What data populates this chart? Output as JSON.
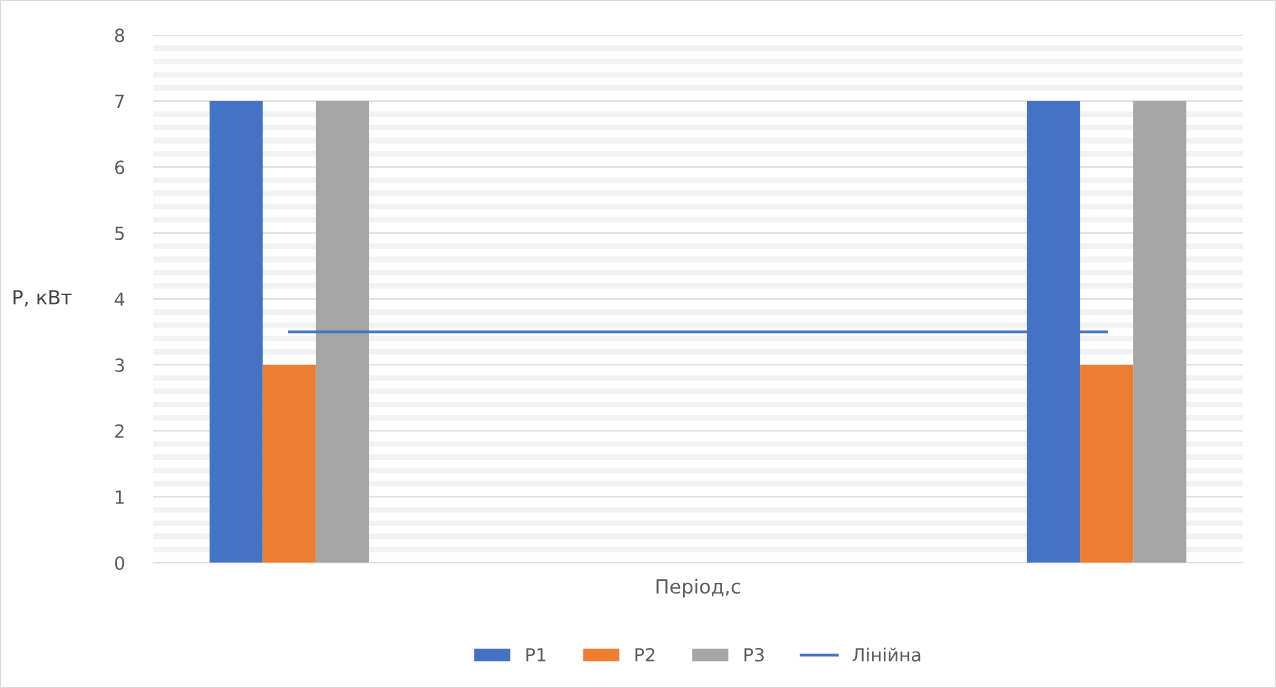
{
  "chart_data": {
    "type": "bar",
    "xlabel": "Період,с",
    "ylabel": "P, кВт",
    "categories": [
      null,
      null,
      null,
      null
    ],
    "series": [
      {
        "name": "P1",
        "color": "#4472c4",
        "values": [
          7,
          null,
          null,
          7
        ]
      },
      {
        "name": "P2",
        "color": "#ed7d31",
        "values": [
          3,
          null,
          null,
          3
        ]
      },
      {
        "name": "P3",
        "color": "#a5a5a5",
        "values": [
          7,
          null,
          null,
          7
        ]
      },
      {
        "name": "Лінійна",
        "type": "line",
        "color": "#4472c4",
        "values": [
          3.5,
          3.5,
          3.5,
          3.5
        ]
      }
    ],
    "ylim": [
      0,
      8
    ],
    "yticks": [
      0,
      1,
      2,
      3,
      4,
      5,
      6,
      7,
      8
    ],
    "grid": "y",
    "legend": "bottom"
  }
}
